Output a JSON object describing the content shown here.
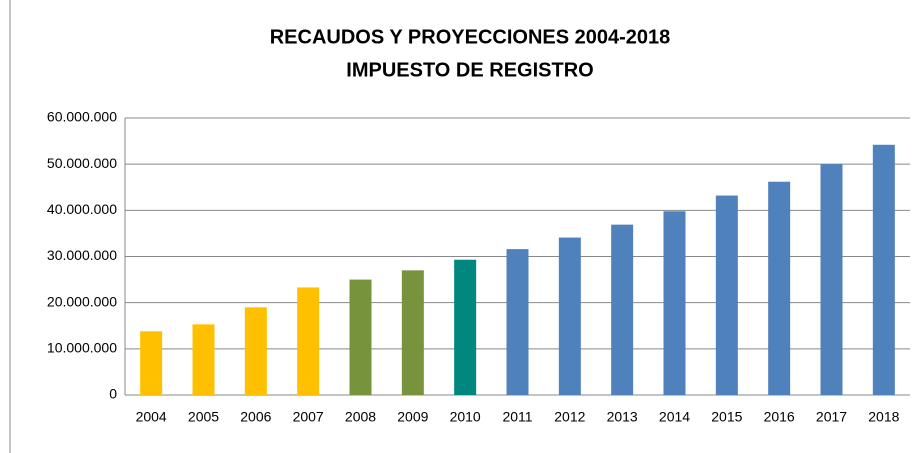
{
  "chart_data": {
    "type": "bar",
    "title": "RECAUDOS Y PROYECCIONES 2004-2018",
    "subtitle": "IMPUESTO DE REGISTRO",
    "categories": [
      "2004",
      "2005",
      "2006",
      "2007",
      "2008",
      "2009",
      "2010",
      "2011",
      "2012",
      "2013",
      "2014",
      "2015",
      "2016",
      "2017",
      "2018"
    ],
    "values": [
      13800000,
      15300000,
      19000000,
      23300000,
      25000000,
      27000000,
      29300000,
      31600000,
      34100000,
      36900000,
      39800000,
      43200000,
      46200000,
      50000000,
      54200000
    ],
    "colors": [
      "#ffc000",
      "#ffc000",
      "#ffc000",
      "#ffc000",
      "#77933c",
      "#77933c",
      "#00877f",
      "#4f81bd",
      "#4f81bd",
      "#4f81bd",
      "#4f81bd",
      "#4f81bd",
      "#4f81bd",
      "#4f81bd",
      "#4f81bd"
    ],
    "ylim": [
      0,
      60000000
    ],
    "yticks": [
      0,
      {
        "value": 10000000,
        "label": "10.000.000"
      },
      {
        "value": 20000000,
        "label": "20.000.000"
      },
      {
        "value": 30000000,
        "label": "30.000.000"
      },
      {
        "value": 40000000,
        "label": "40.000.000"
      },
      {
        "value": 50000000,
        "label": "50.000.000"
      },
      {
        "value": 60000000,
        "label": "60.000.000"
      }
    ],
    "grid": true
  }
}
